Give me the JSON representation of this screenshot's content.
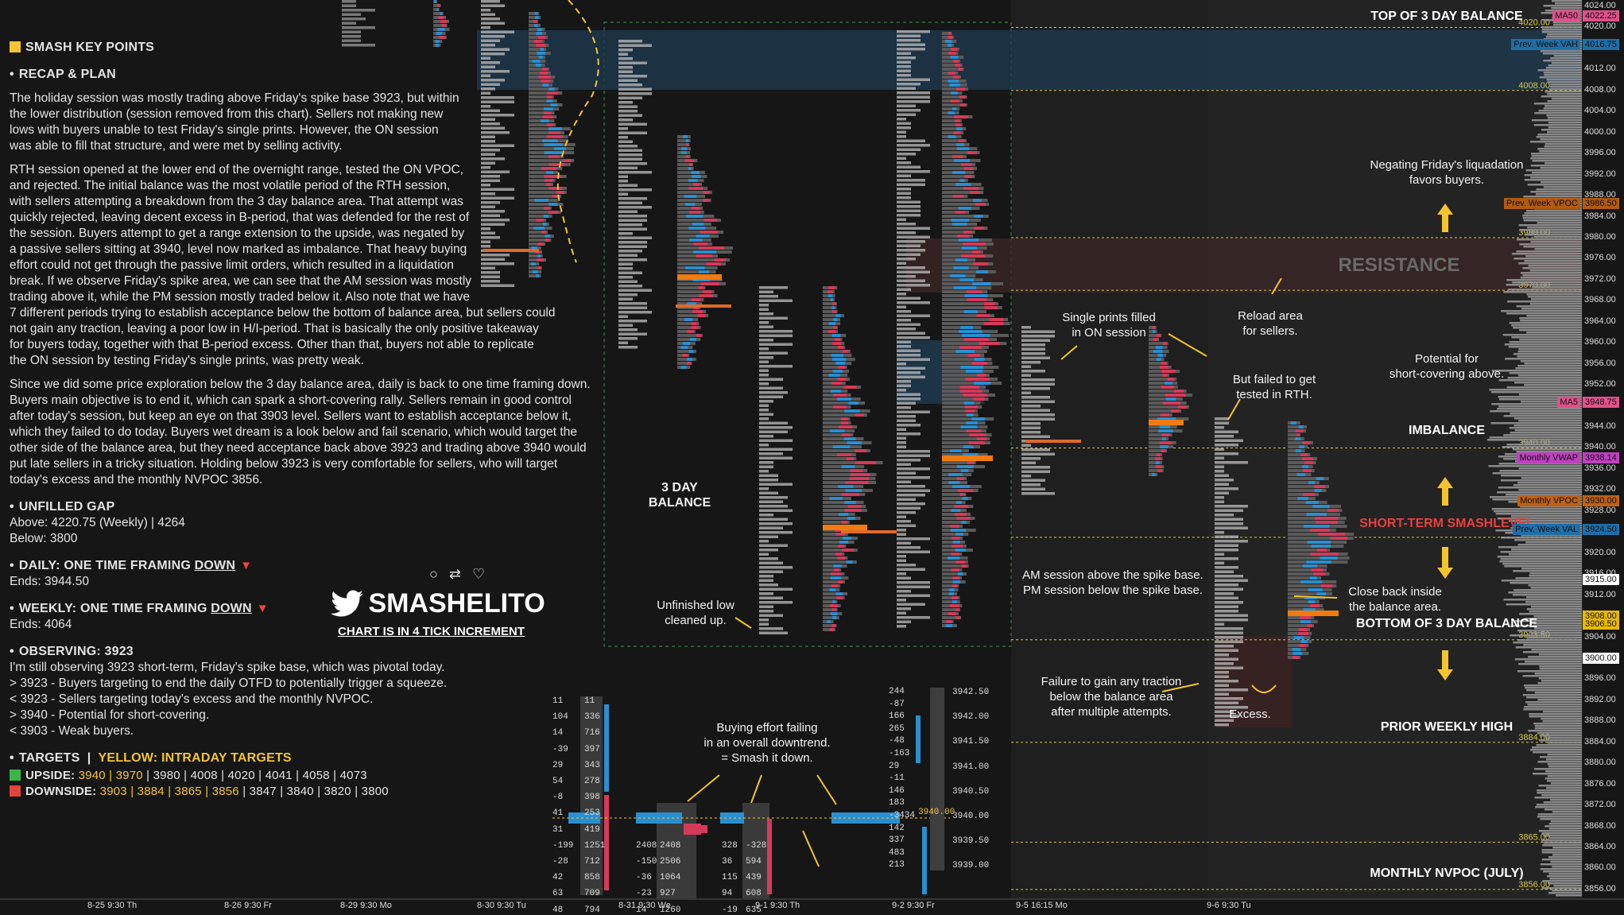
{
  "notes": {
    "key_points_title": "SMASH KEY POINTS",
    "recap_title": "RECAP & PLAN",
    "p1": [
      "The holiday session was mostly trading above Friday's spike base 3923, but within",
      "the lower distribution (session removed from this chart). Sellers not making new",
      "lows with buyers unable to test Friday's single prints. However, the ON session",
      "was able to fill that structure, and were met by selling activity."
    ],
    "p2": [
      "RTH session opened at the lower end of the overnight range, tested the ON VPOC,",
      "and rejected. The initial balance was the most volatile period of the RTH session,",
      "with sellers attempting a breakdown from the 3 day balance area. That attempt was",
      "quickly rejected, leaving decent excess in B-period, that was defended for the rest of",
      "the session. Buyers attempt to get a range extension to the upside, was negated by",
      "a passive sellers sitting at 3940, level now marked as imbalance. That heavy buying",
      "effort could not get through the passive limit orders, which resulted in a liquidation",
      "break. If we observe Friday's spike area, we can see that the AM session was mostly",
      "trading above it, while the PM session mostly traded below it. Also note that we have",
      "7 different periods trying to establish acceptance below the bottom of balance area, but sellers could",
      "not gain any traction, leaving a poor low in H/I-period. That is basically the only positive takeaway",
      "for buyers today, together with that B-period excess. Other than that, buyers not able to replicate",
      "the ON session by testing Friday's single prints, was pretty weak."
    ],
    "p3": [
      "Since we did some price exploration below the 3 day balance area, daily is back to one time framing down.",
      "Buyers main objective is to end it, which can spark a short-covering rally. Sellers remain in good control",
      "after today's session, but keep an eye on that 3903 level. Sellers want to establish acceptance below it,",
      "which they failed to do today. Buyers wet dream is a look below and fail scenario, which would target the",
      "other side of the balance area, but they need acceptance back above 3923 and trading above 3940 would",
      "put late sellers in a tricky situation. Holding below 3923 is very comfortable for sellers, who will target",
      "today's excess and the monthly NVPOC 3856."
    ],
    "gap_title": "UNFILLED GAP",
    "gap_above": "Above: 4220.75 (Weekly) | 4264",
    "gap_below": "Below: 3800",
    "daily_title": "DAILY: ONE TIME FRAMING",
    "daily_dir": "DOWN",
    "daily_ends": "Ends: 3944.50",
    "weekly_title": "WEEKLY: ONE TIME FRAMING",
    "weekly_dir": "DOWN",
    "weekly_ends": "Ends: 4064",
    "observing_title": "OBSERVING: 3923",
    "observing": [
      "I'm still observing 3923 short-term, Friday's spike base, which was pivotal today.",
      "> 3923 - Buyers targeting to end the daily OTFD to potentially trigger a squeeze.",
      "< 3923 - Sellers targeting today's excess and the monthly NVPOC.",
      "> 3940 - Potential for short-covering.",
      "< 3903 - Weak buyers."
    ],
    "targets_title": "TARGETS",
    "targets_yellow": "YELLOW: INTRADAY TARGETS",
    "upside_label": "UPSIDE:",
    "upside_yellow": "3940 | 3970",
    "upside_rest": " | 3980 | 4008 | 4020 | 4041 | 4058 | 4073",
    "downside_label": "DOWNSIDE:",
    "downside_yellow": "3903 | 3884 | 3865 | 3856",
    "downside_rest": " | 3847 | 3840 | 3820 | 3800"
  },
  "branding": {
    "handle": "SMASHELITO",
    "increment": "CHART IS IN 4 TICK INCREMENT"
  },
  "annotations": {
    "three_day_balance": "3 DAY BALANCE",
    "unfinished_low": [
      "Unfinished low",
      "cleaned up."
    ],
    "buying_effort": [
      "Buying effort failing",
      "in an overall downtrend.",
      "= Smash it down."
    ],
    "single_prints": [
      "Single prints filled",
      "in ON session"
    ],
    "reload": [
      "Reload area",
      "for sellers."
    ],
    "failed_test": [
      "But failed to get",
      "tested in RTH."
    ],
    "am_pm": [
      "AM session above the spike base.",
      "PM session below the spike base."
    ],
    "failure": [
      "Failure to gain any traction",
      "below the balance area",
      "after multiple attempts."
    ],
    "excess": "Excess.",
    "close_back": [
      "Close back inside",
      "the balance area."
    ],
    "negating": [
      "Negating Friday's liquadation",
      "favors buyers."
    ],
    "potential": [
      "Potential for",
      "short-covering above."
    ]
  },
  "levels": {
    "top_balance": "TOP OF 3 DAY BALANCE",
    "resistance": "RESISTANCE",
    "imbalance": "IMBALANCE",
    "short_term": "SHORT-TERM SMASHLEVEL",
    "bottom_balance": "BOTTOM OF 3 DAY BALANCE",
    "prior_weekly_high": "PRIOR WEEKLY HIGH",
    "monthly_nvpoc": "MONTHLY NVPOC (JULY)"
  },
  "axis": {
    "prices": [
      "4024.00",
      "4020.00",
      "4016.00",
      "4012.00",
      "4008.00",
      "4004.00",
      "4000.00",
      "3996.00",
      "3992.00",
      "3988.00",
      "3984.00",
      "3980.00",
      "3976.00",
      "3972.00",
      "3968.00",
      "3964.00",
      "3960.00",
      "3956.00",
      "3952.00",
      "3948.00",
      "3944.00",
      "3940.00",
      "3936.00",
      "3932.00",
      "3928.00",
      "3924.00",
      "3920.00",
      "3916.00",
      "3912.00",
      "3908.00",
      "3904.00",
      "3900.00",
      "3896.00",
      "3892.00",
      "3888.00",
      "3884.00",
      "3880.00",
      "3876.00",
      "3872.00",
      "3868.00",
      "3864.00",
      "3860.00",
      "3856.00"
    ],
    "level_lines": [
      "4020.00",
      "4008.00",
      "3980.00",
      "3970.00",
      "3940.00",
      "3923.00",
      "3903.50",
      "3884.00",
      "3865.00",
      "3856.00"
    ],
    "pills": [
      {
        "label": "MA50",
        "value": "4022.25",
        "color": "#e0508a"
      },
      {
        "label": "Prev. Week VAH",
        "value": "4016.75",
        "color": "#1e6ea8"
      },
      {
        "label": "Prev. Week VPOC",
        "value": "3986.50",
        "color": "#b05a10"
      },
      {
        "label": "MA5",
        "value": "3948.75",
        "color": "#e0508a"
      },
      {
        "label": "Monthly VWAP",
        "value": "3938.14",
        "color": "#c040c0"
      },
      {
        "label": "Monthly VPOC",
        "value": "3930.00",
        "color": "#c06010"
      },
      {
        "label": "Prev. Week VAL",
        "value": "3924.50",
        "color": "#1e6ea8"
      },
      {
        "label": "",
        "value": "3915.00",
        "color": "#ffffff"
      },
      {
        "label": "",
        "value": "3908.00",
        "color": "#e8b800"
      },
      {
        "label": "",
        "value": "3906.50",
        "color": "#e8b800"
      },
      {
        "label": "",
        "value": "3900.00",
        "color": "#ffffff"
      }
    ]
  },
  "dates": [
    "8-25  9:30 Th",
    "8-26  9:30 Fr",
    "8-29  9:30 Mo",
    "8-30  9:30 Tu",
    "8-31  9:30 We",
    "9-1  9:30 Th",
    "9-2  9:30 Fr",
    "9-5  16:15 Mo",
    "9-6  9:30 Tu"
  ],
  "footprint": {
    "left_rows": [
      [
        "11",
        "11"
      ],
      [
        "104",
        "336"
      ],
      [
        "14",
        "716"
      ],
      [
        "-39",
        "397"
      ],
      [
        "29",
        "343"
      ],
      [
        "54",
        "278"
      ],
      [
        "-8",
        "398"
      ],
      [
        "41",
        "253"
      ],
      [
        "31",
        "419"
      ],
      [
        "-199",
        "1251"
      ],
      [
        "-28",
        "712"
      ],
      [
        "42",
        "858"
      ],
      [
        "63",
        "709"
      ],
      [
        "48",
        "794"
      ]
    ],
    "mid_rows": [
      [
        "-",
        "-"
      ],
      [
        "-",
        "-"
      ],
      [
        "-",
        "-"
      ],
      [
        "-",
        "-"
      ],
      [
        "-",
        "-"
      ],
      [
        "-",
        "-"
      ],
      [
        "-",
        "-"
      ],
      [
        "-",
        "-"
      ],
      [
        "-",
        "-"
      ],
      [
        "2408",
        "2408"
      ],
      [
        "-150",
        "2506"
      ],
      [
        "-36",
        "1064"
      ],
      [
        "-23",
        "927"
      ],
      [
        "14",
        "1260"
      ]
    ],
    "right_rows": [
      [
        "",
        "",
        ""
      ],
      [
        "",
        "",
        ""
      ],
      [
        "",
        "",
        ""
      ],
      [
        "",
        "",
        ""
      ],
      [
        "",
        "",
        ""
      ],
      [
        "",
        "",
        ""
      ],
      [
        "",
        "",
        ""
      ],
      [
        "",
        "",
        ""
      ],
      [
        "",
        "",
        ""
      ],
      [
        "328",
        "-328",
        ""
      ],
      [
        "36",
        "594",
        ""
      ],
      [
        "115",
        "439",
        ""
      ],
      [
        "94",
        "608",
        ""
      ],
      [
        "-19",
        "635",
        ""
      ]
    ],
    "far_right": [
      "244",
      "-87",
      "166",
      "265",
      "-48",
      "-163",
      "29",
      "-11",
      "146",
      "183",
      "-3434",
      "142",
      "337",
      "483",
      "213"
    ],
    "prices": [
      "3942.50",
      "3942.00",
      "3941.50",
      "3941.00",
      "3940.50",
      "3940.00",
      "3939.50",
      "3939.00"
    ],
    "highlight_price": "3940.00"
  },
  "colors": {
    "bg": "#161616",
    "panel": "#1c1c1c",
    "blue": "#2a8fd0",
    "red": "#d63a5a",
    "orange": "#f07b10",
    "yellow": "#f4c430",
    "green": "#3ab54a"
  }
}
